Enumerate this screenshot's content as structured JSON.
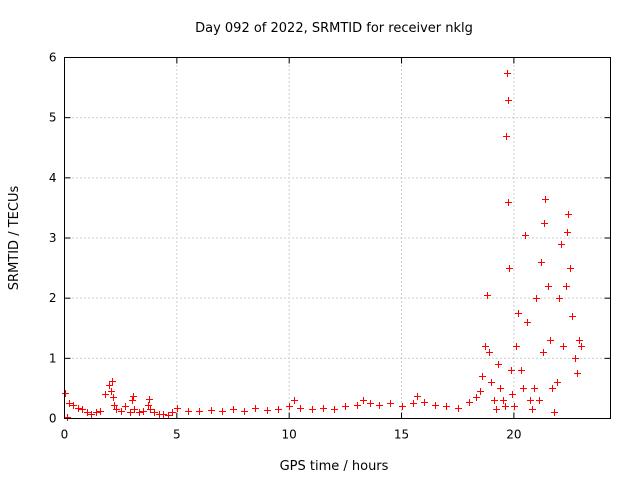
{
  "chart_data": {
    "type": "scatter",
    "title": "Day 092 of 2022, SRMTID for receiver nklg",
    "xlabel": "GPS time / hours",
    "ylabel": "SRMTID / TECUs",
    "xlim": [
      0,
      24.3
    ],
    "ylim": [
      0,
      6
    ],
    "xticks": [
      0,
      5,
      10,
      15,
      20
    ],
    "yticks": [
      0,
      1,
      2,
      3,
      4,
      5,
      6
    ],
    "grid": true,
    "marker": "+",
    "series_color": "#ff0000",
    "series": [
      {
        "name": "SRMTID",
        "x": [
          0.0,
          0.1,
          0.2,
          0.4,
          0.6,
          0.8,
          1.0,
          1.2,
          1.4,
          1.6,
          1.8,
          2.0,
          2.05,
          2.1,
          2.15,
          2.2,
          2.3,
          2.5,
          2.7,
          2.9,
          3.0,
          3.05,
          3.1,
          3.3,
          3.5,
          3.7,
          3.75,
          3.8,
          4.0,
          4.2,
          4.4,
          4.6,
          4.8,
          5.0,
          5.5,
          6.0,
          6.5,
          7.0,
          7.5,
          8.0,
          8.5,
          9.0,
          9.5,
          10.0,
          10.2,
          10.5,
          11.0,
          11.5,
          12.0,
          12.5,
          13.0,
          13.3,
          13.6,
          14.0,
          14.5,
          15.0,
          15.5,
          15.7,
          16.0,
          16.5,
          17.0,
          17.5,
          18.0,
          18.3,
          18.5,
          18.6,
          18.7,
          18.8,
          18.9,
          19.0,
          19.1,
          19.2,
          19.3,
          19.4,
          19.5,
          19.6,
          19.65,
          19.7,
          19.72,
          19.75,
          19.8,
          19.85,
          19.9,
          20.0,
          20.1,
          20.2,
          20.3,
          20.4,
          20.5,
          20.6,
          20.7,
          20.8,
          20.9,
          21.0,
          21.1,
          21.2,
          21.3,
          21.35,
          21.4,
          21.5,
          21.6,
          21.7,
          21.8,
          21.9,
          22.0,
          22.1,
          22.2,
          22.3,
          22.35,
          22.4,
          22.5,
          22.6,
          22.7,
          22.8,
          22.9,
          23.0
        ],
        "values": [
          0.43,
          0.02,
          0.25,
          0.22,
          0.18,
          0.15,
          0.1,
          0.08,
          0.1,
          0.12,
          0.4,
          0.55,
          0.45,
          0.62,
          0.35,
          0.22,
          0.15,
          0.12,
          0.2,
          0.1,
          0.3,
          0.38,
          0.15,
          0.1,
          0.12,
          0.22,
          0.33,
          0.15,
          0.1,
          0.08,
          0.07,
          0.06,
          0.1,
          0.18,
          0.13,
          0.12,
          0.14,
          0.12,
          0.15,
          0.13,
          0.17,
          0.14,
          0.16,
          0.2,
          0.3,
          0.18,
          0.16,
          0.18,
          0.15,
          0.2,
          0.22,
          0.3,
          0.25,
          0.22,
          0.26,
          0.2,
          0.25,
          0.38,
          0.28,
          0.22,
          0.2,
          0.18,
          0.28,
          0.35,
          0.45,
          0.7,
          1.2,
          2.05,
          1.1,
          0.6,
          0.3,
          0.15,
          0.9,
          0.5,
          0.3,
          0.2,
          4.7,
          5.75,
          5.3,
          3.6,
          2.5,
          0.8,
          0.4,
          0.2,
          1.2,
          1.75,
          0.8,
          0.5,
          3.05,
          1.6,
          0.3,
          0.15,
          0.5,
          2.0,
          0.3,
          2.6,
          1.1,
          3.25,
          3.65,
          2.2,
          1.3,
          0.5,
          0.1,
          0.6,
          2.0,
          2.9,
          1.2,
          2.2,
          3.1,
          3.4,
          2.5,
          1.7,
          1.0,
          0.75,
          1.3,
          1.2
        ]
      }
    ]
  }
}
